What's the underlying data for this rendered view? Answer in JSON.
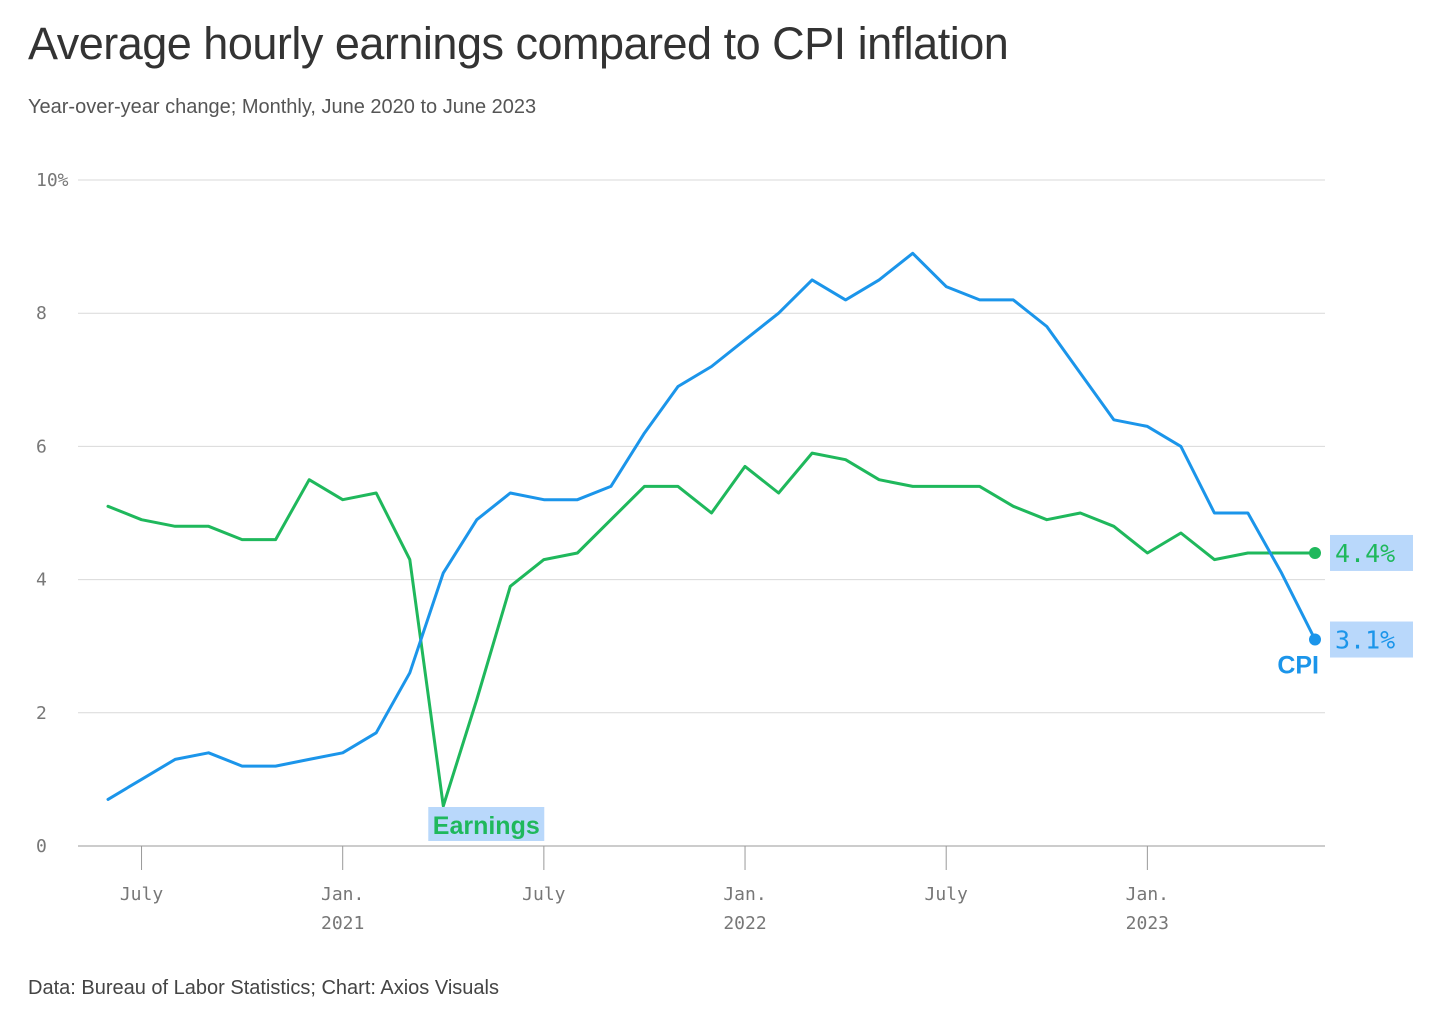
{
  "title": "Average hourly earnings compared to CPI inflation",
  "subtitle": "Year-over-year change; Monthly, June 2020 to June 2023",
  "source": "Data: Bureau of Labor Statistics; Chart: Axios Visuals",
  "colors": {
    "earnings": "#1fb85c",
    "cpi": "#1b95ea",
    "label_highlight": "#b9d8fb",
    "grid": "#d9d9d9",
    "axis": "#999999"
  },
  "chart_data": {
    "type": "line",
    "title": "Average hourly earnings compared to CPI inflation",
    "subtitle": "Year-over-year change; Monthly, June 2020 to June 2023",
    "x": [
      "2020-06",
      "2020-07",
      "2020-08",
      "2020-09",
      "2020-10",
      "2020-11",
      "2020-12",
      "2021-01",
      "2021-02",
      "2021-03",
      "2021-04",
      "2021-05",
      "2021-06",
      "2021-07",
      "2021-08",
      "2021-09",
      "2021-10",
      "2021-11",
      "2021-12",
      "2022-01",
      "2022-02",
      "2022-03",
      "2022-04",
      "2022-05",
      "2022-06",
      "2022-07",
      "2022-08",
      "2022-09",
      "2022-10",
      "2022-11",
      "2022-12",
      "2023-01",
      "2023-02",
      "2023-03",
      "2023-04",
      "2023-05",
      "2023-06"
    ],
    "series": [
      {
        "name": "Earnings",
        "color": "#1fb85c",
        "values": [
          5.1,
          4.9,
          4.8,
          4.8,
          4.6,
          4.6,
          5.5,
          5.2,
          5.3,
          4.3,
          0.6,
          2.2,
          3.9,
          4.3,
          4.4,
          4.9,
          5.4,
          5.4,
          5.0,
          5.7,
          5.3,
          5.9,
          5.8,
          5.5,
          5.4,
          5.4,
          5.4,
          5.1,
          4.9,
          5.0,
          4.8,
          4.4,
          4.7,
          4.3,
          4.4,
          4.4,
          4.4
        ],
        "end_label": "4.4%"
      },
      {
        "name": "CPI",
        "color": "#1b95ea",
        "values": [
          0.7,
          1.0,
          1.3,
          1.4,
          1.2,
          1.2,
          1.3,
          1.4,
          1.7,
          2.6,
          4.1,
          4.9,
          5.3,
          5.2,
          5.2,
          5.4,
          6.2,
          6.9,
          7.2,
          7.6,
          8.0,
          8.5,
          8.2,
          8.5,
          8.9,
          8.4,
          8.2,
          8.2,
          7.8,
          7.1,
          6.4,
          6.3,
          6.0,
          5.0,
          5.0,
          4.1,
          3.1
        ],
        "end_label": "3.1%"
      }
    ],
    "ylim": [
      0,
      10
    ],
    "y_ticks": [
      {
        "value": 0,
        "label": "0"
      },
      {
        "value": 2,
        "label": "2"
      },
      {
        "value": 4,
        "label": "4"
      },
      {
        "value": 6,
        "label": "6"
      },
      {
        "value": 8,
        "label": "8"
      },
      {
        "value": 10,
        "label": "10%"
      }
    ],
    "x_ticks": [
      {
        "date": "2020-07",
        "label": "July",
        "year": ""
      },
      {
        "date": "2021-01",
        "label": "Jan.",
        "year": "2021"
      },
      {
        "date": "2021-07",
        "label": "July",
        "year": ""
      },
      {
        "date": "2022-01",
        "label": "Jan.",
        "year": "2022"
      },
      {
        "date": "2022-07",
        "label": "July",
        "year": ""
      },
      {
        "date": "2023-01",
        "label": "Jan.",
        "year": "2023"
      }
    ],
    "grid": true,
    "legend": "direct labels"
  }
}
